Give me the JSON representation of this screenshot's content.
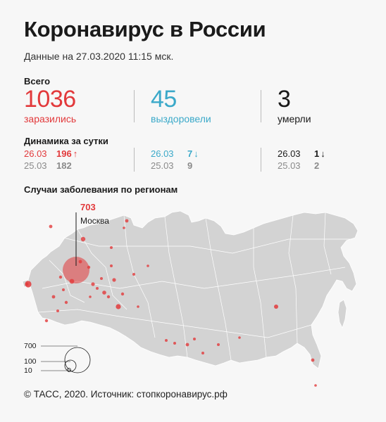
{
  "title": "Коронавирус в России",
  "subtitle": "Данные на 27.03.2020 11:15 мск.",
  "totals": {
    "label": "Всего",
    "infected": {
      "value": "1036",
      "label": "заразились"
    },
    "recovered": {
      "value": "45",
      "label": "выздоровели"
    },
    "deaths": {
      "value": "3",
      "label": "умерли"
    }
  },
  "dynamics": {
    "label": "Динамика за сутки",
    "infected": [
      {
        "date": "26.03",
        "value": "196"
      },
      {
        "date": "25.03",
        "value": "182"
      }
    ],
    "recovered": [
      {
        "date": "26.03",
        "value": "7"
      },
      {
        "date": "25.03",
        "value": "9"
      }
    ],
    "deaths": [
      {
        "date": "26.03",
        "value": "1"
      },
      {
        "date": "25.03",
        "value": "2"
      }
    ]
  },
  "map": {
    "label": "Случаи заболевания по регионам",
    "callout": {
      "value": "703",
      "city": "Москва"
    },
    "legend": [
      "700",
      "100",
      "10"
    ]
  },
  "footer": "© ТАСС, 2020. Источник: стопкоронавирус.рф",
  "colors": {
    "infected": "#e2393b",
    "recovered": "#3ba9c9",
    "deaths": "#1a1a1a",
    "muted": "#8a8a8a",
    "map_fill": "#d3d3d3",
    "map_border": "#ffffff"
  },
  "icons": {
    "up": "arrow-up-icon",
    "down": "arrow-down-icon"
  }
}
